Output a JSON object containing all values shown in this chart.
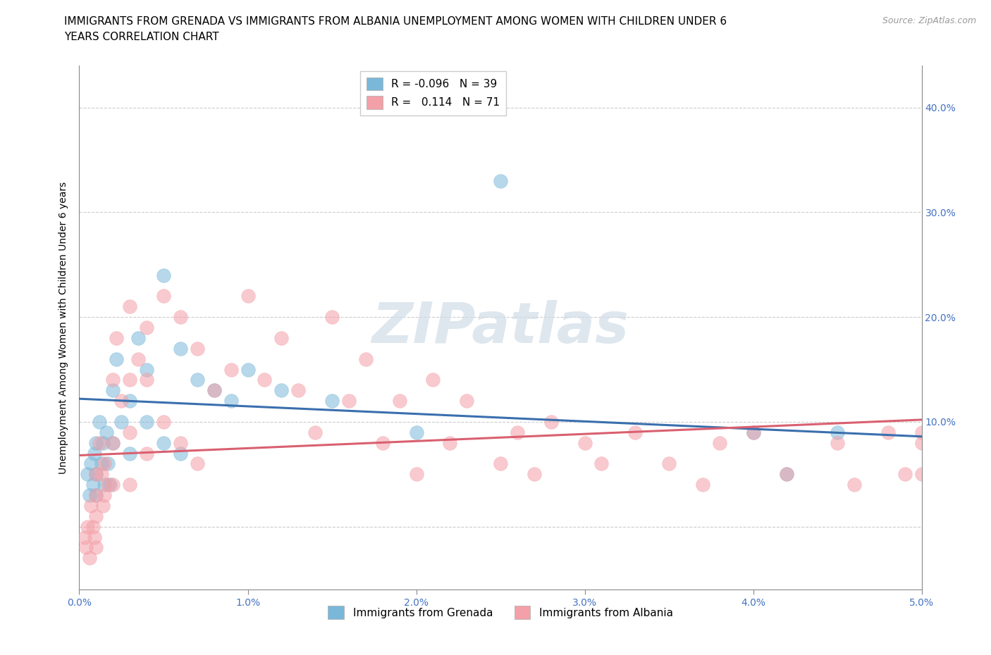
{
  "title_line1": "IMMIGRANTS FROM GRENADA VS IMMIGRANTS FROM ALBANIA UNEMPLOYMENT AMONG WOMEN WITH CHILDREN UNDER 6",
  "title_line2": "YEARS CORRELATION CHART",
  "source": "Source: ZipAtlas.com",
  "ylabel": "Unemployment Among Women with Children Under 6 years",
  "xlim": [
    0.0,
    0.05
  ],
  "ylim": [
    -0.06,
    0.44
  ],
  "yticks": [
    0.0,
    0.1,
    0.2,
    0.3,
    0.4
  ],
  "ytick_labels_right": [
    "",
    "10.0%",
    "20.0%",
    "30.0%",
    "40.0%"
  ],
  "xticks": [
    0.0,
    0.01,
    0.02,
    0.03,
    0.04,
    0.05
  ],
  "xtick_labels": [
    "0.0%",
    "1.0%",
    "2.0%",
    "3.0%",
    "4.0%",
    "5.0%"
  ],
  "grenada_label": "Immigrants from Grenada",
  "albania_label": "Immigrants from Albania",
  "grenada_R": "-0.096",
  "grenada_N": "39",
  "albania_R": "0.114",
  "albania_N": "71",
  "grenada_color": "#7ab8d9",
  "albania_color": "#f4a0a8",
  "grenada_line_color": "#3a6fad",
  "albania_line_color": "#d96070",
  "grid_color": "#cccccc",
  "background_color": "#ffffff",
  "title_fontsize": 11,
  "axis_label_fontsize": 10,
  "tick_fontsize": 10,
  "legend_fontsize": 11,
  "grenada_line_y0": 0.122,
  "grenada_line_y1": 0.086,
  "albania_line_y0": 0.068,
  "albania_line_y1": 0.102,
  "grenada_x": [
    0.0005,
    0.0006,
    0.0007,
    0.0008,
    0.0009,
    0.001,
    0.001,
    0.001,
    0.0012,
    0.0013,
    0.0014,
    0.0015,
    0.0016,
    0.0017,
    0.0018,
    0.002,
    0.002,
    0.0022,
    0.0025,
    0.003,
    0.003,
    0.0035,
    0.004,
    0.004,
    0.005,
    0.005,
    0.006,
    0.006,
    0.007,
    0.008,
    0.009,
    0.01,
    0.012,
    0.015,
    0.02,
    0.025,
    0.04,
    0.042,
    0.045
  ],
  "grenada_y": [
    0.05,
    0.03,
    0.06,
    0.04,
    0.07,
    0.08,
    0.05,
    0.03,
    0.1,
    0.06,
    0.08,
    0.04,
    0.09,
    0.06,
    0.04,
    0.13,
    0.08,
    0.16,
    0.1,
    0.12,
    0.07,
    0.18,
    0.15,
    0.1,
    0.24,
    0.08,
    0.17,
    0.07,
    0.14,
    0.13,
    0.12,
    0.15,
    0.13,
    0.12,
    0.09,
    0.33,
    0.09,
    0.05,
    0.09
  ],
  "albania_x": [
    0.0003,
    0.0004,
    0.0005,
    0.0006,
    0.0007,
    0.0008,
    0.0009,
    0.001,
    0.001,
    0.001,
    0.001,
    0.0012,
    0.0013,
    0.0014,
    0.0015,
    0.0015,
    0.0017,
    0.002,
    0.002,
    0.002,
    0.0022,
    0.0025,
    0.003,
    0.003,
    0.003,
    0.003,
    0.0035,
    0.004,
    0.004,
    0.004,
    0.005,
    0.005,
    0.006,
    0.006,
    0.007,
    0.007,
    0.008,
    0.009,
    0.01,
    0.011,
    0.012,
    0.013,
    0.014,
    0.015,
    0.016,
    0.017,
    0.018,
    0.019,
    0.02,
    0.021,
    0.022,
    0.023,
    0.025,
    0.026,
    0.027,
    0.028,
    0.03,
    0.031,
    0.033,
    0.035,
    0.037,
    0.038,
    0.04,
    0.042,
    0.045,
    0.046,
    0.048,
    0.049,
    0.05,
    0.05,
    0.05
  ],
  "albania_y": [
    -0.01,
    -0.02,
    0.0,
    -0.03,
    0.02,
    0.0,
    -0.01,
    0.05,
    0.03,
    0.01,
    -0.02,
    0.08,
    0.05,
    0.02,
    0.06,
    0.03,
    0.04,
    0.14,
    0.08,
    0.04,
    0.18,
    0.12,
    0.21,
    0.14,
    0.09,
    0.04,
    0.16,
    0.19,
    0.14,
    0.07,
    0.22,
    0.1,
    0.2,
    0.08,
    0.17,
    0.06,
    0.13,
    0.15,
    0.22,
    0.14,
    0.18,
    0.13,
    0.09,
    0.2,
    0.12,
    0.16,
    0.08,
    0.12,
    0.05,
    0.14,
    0.08,
    0.12,
    0.06,
    0.09,
    0.05,
    0.1,
    0.08,
    0.06,
    0.09,
    0.06,
    0.04,
    0.08,
    0.09,
    0.05,
    0.08,
    0.04,
    0.09,
    0.05,
    0.09,
    0.05,
    0.08
  ]
}
